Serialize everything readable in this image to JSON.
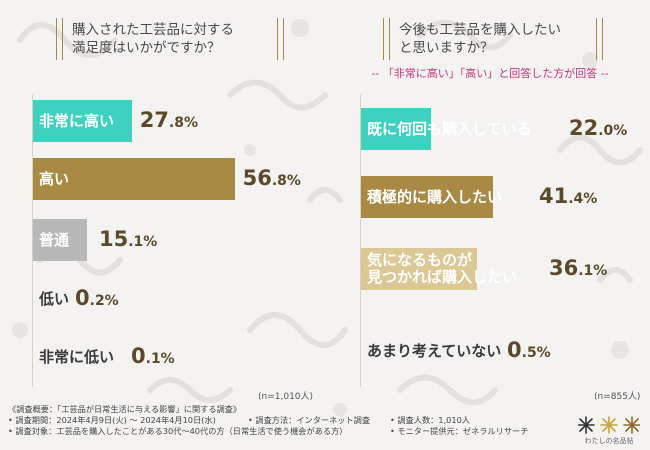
{
  "left": {
    "title_line1": "購入された工芸品に対する",
    "title_line2": "満足度はいかがですか？",
    "n": "(n=1,010人)"
  },
  "right": {
    "title_line1": "今後も工芸品を購入したい",
    "title_line2": "と思いますか？",
    "note": "-- 「非常に高い」「高い」と回答した方が回答 --",
    "n": "(n=855人)"
  },
  "chart_data": [
    {
      "type": "bar",
      "title": "購入された工芸品に対する満足度はいかがですか？",
      "categories": [
        "非常に高い",
        "高い",
        "普通",
        "低い",
        "非常に低い"
      ],
      "values": [
        27.8,
        56.8,
        15.1,
        0.2,
        0.1
      ],
      "value_labels": [
        [
          "27",
          ".8%"
        ],
        [
          "56",
          ".8%"
        ],
        [
          "15",
          ".1%"
        ],
        [
          "0",
          ".2%"
        ],
        [
          "0",
          ".1%"
        ]
      ],
      "colors": [
        "#3fd1bf",
        "#a88a45",
        "#b8b8b8",
        "#ffffff",
        "#ffffff"
      ],
      "n_label": "(n=1,010人)"
    },
    {
      "type": "bar",
      "title": "今後も工芸品を購入したいと思いますか？",
      "categories": [
        "既に何回も購入している",
        "積極的に購入したい",
        "気になるものが\n見つかれば購入したい",
        "あまり考えていない"
      ],
      "values": [
        22.0,
        41.4,
        36.1,
        0.5
      ],
      "value_labels": [
        [
          "22",
          ".0%"
        ],
        [
          "41",
          ".4%"
        ],
        [
          "36",
          ".1%"
        ],
        [
          "0",
          ".5%"
        ]
      ],
      "colors": [
        "#3fd1bf",
        "#a88a45",
        "#dcc894",
        "#ffffff"
      ],
      "n_label": "(n=855人)"
    }
  ],
  "footer": {
    "line1": "《調査概要：「工芸品が日常生活に与える影響」に関する調査》",
    "line2a": "• 調査期間：2024年4月9日(火) ～ 2024年4月10日(水)",
    "line2b": "• 調査方法：インターネット調査",
    "line2c": "• 調査人数：1,010人",
    "line3a": "• 調査対象：工芸品を購入したことがある30代～40代の方（日常生活で使う機会がある方）",
    "line3b": "• モニター提供元：ゼネラルリサーチ",
    "logo_text": "わたしの名品帖"
  }
}
